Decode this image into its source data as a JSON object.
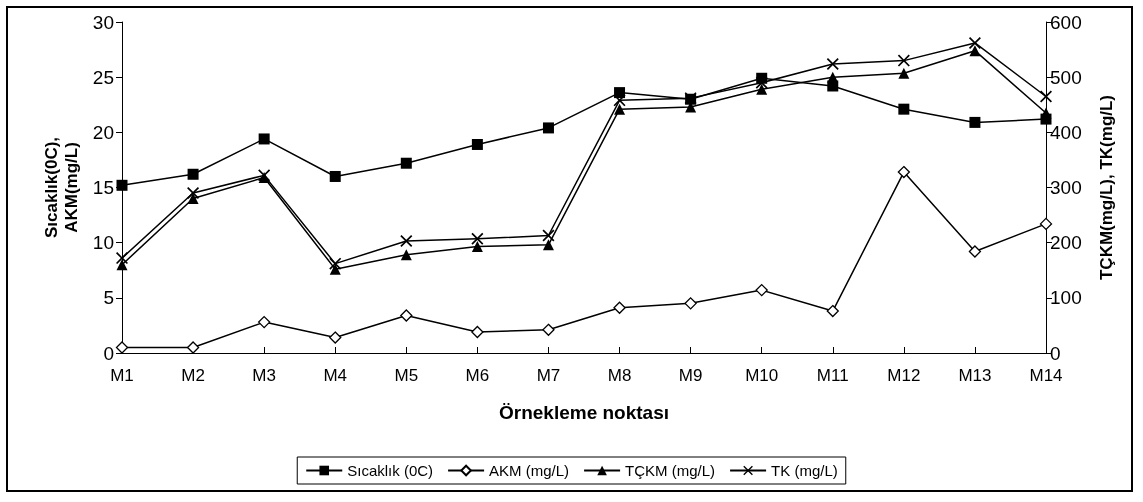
{
  "chart_data": {
    "type": "line",
    "xlabel": "Örnekleme noktası",
    "ylabel": "Sıcaklık(0C),\nAKM(mg/L)",
    "y2label": "TÇKM(mg/L), TK(mg/L)",
    "categories": [
      "M1",
      "M2",
      "M3",
      "M4",
      "M5",
      "M6",
      "M7",
      "M8",
      "M9",
      "M10",
      "M11",
      "M12",
      "M13",
      "M14"
    ],
    "ylim": [
      0,
      30
    ],
    "yticks": [
      0,
      5,
      10,
      15,
      20,
      25,
      30
    ],
    "y2lim": [
      0,
      600
    ],
    "y2ticks": [
      0,
      100,
      200,
      300,
      400,
      500,
      600
    ],
    "grid": false,
    "legend": "bottom",
    "line_style": "solid",
    "series": [
      {
        "name": "Sıcaklık (0C)",
        "color": "#000000",
        "marker": "square",
        "values": [
          15.2,
          16.2,
          19.4,
          16.0,
          17.2,
          18.9,
          20.4,
          23.6,
          23.0,
          24.9,
          24.2,
          22.1,
          20.9,
          21.2
        ]
      },
      {
        "name": "AKM (mg/L)",
        "color": "#000000",
        "marker": "diamond",
        "values": [
          0.5,
          0.5,
          2.8,
          1.4,
          3.4,
          1.9,
          2.1,
          4.1,
          4.5,
          5.7,
          3.8,
          16.4,
          9.2,
          11.7
        ]
      },
      {
        "name": "TÇKM (mg/L)",
        "color": "#000000",
        "marker": "triangle",
        "axis": "y2",
        "values": [
          160,
          280,
          318,
          152,
          178,
          193,
          196,
          442,
          446,
          478,
          500,
          507,
          548,
          435
        ]
      },
      {
        "name": "TK (mg/L)",
        "color": "#000000",
        "marker": "cross",
        "axis": "y2",
        "values": [
          172,
          290,
          322,
          162,
          203,
          207,
          213,
          458,
          462,
          490,
          524,
          530,
          562,
          465
        ]
      }
    ]
  }
}
